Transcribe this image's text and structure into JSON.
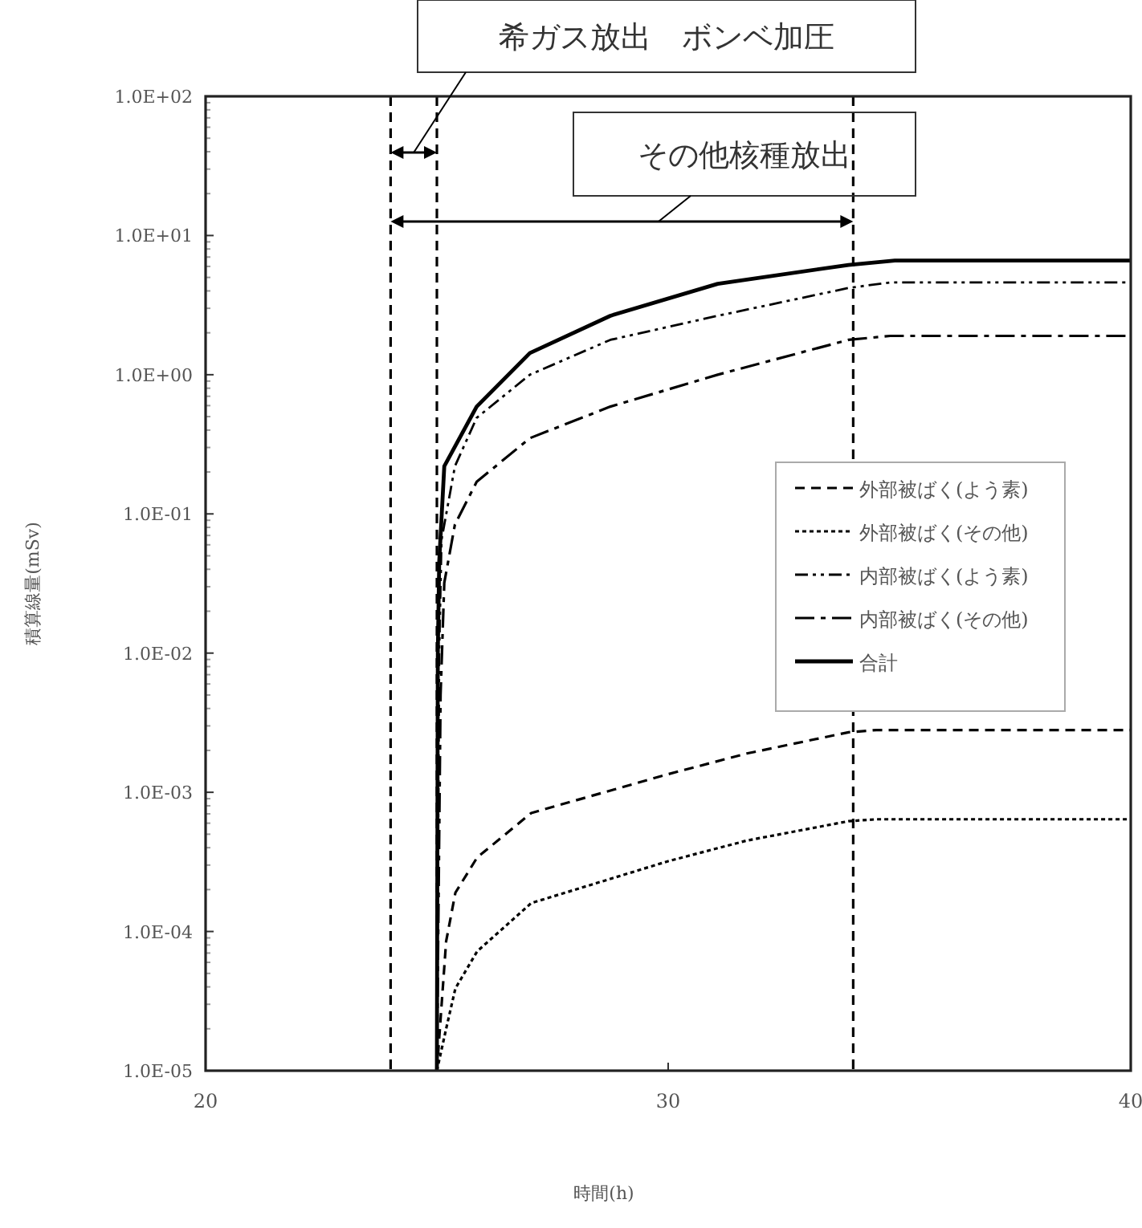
{
  "chart_data": {
    "type": "line",
    "xlabel": "時間(h)",
    "ylabel": "積算線量(mSv)",
    "log": "y",
    "xlim": [
      20,
      40
    ],
    "xticks": [
      20,
      30,
      40
    ],
    "ylim": [
      1e-05,
      100
    ],
    "yticks": [
      {
        "value": 1e-05,
        "label": "1.0E-05"
      },
      {
        "value": 0.0001,
        "label": "1.0E-04"
      },
      {
        "value": 0.001,
        "label": "1.0E-03"
      },
      {
        "value": 0.01,
        "label": "1.0E-02"
      },
      {
        "value": 0.1,
        "label": "1.0E-01"
      },
      {
        "value": 1,
        "label": "1.0E+00"
      },
      {
        "value": 10,
        "label": "1.0E+01"
      },
      {
        "value": 100,
        "label": "1.0E+02"
      }
    ],
    "grid": false,
    "legend": "right",
    "marker": "none",
    "series": [
      {
        "name": "外部被ばく(よう素)",
        "color": "#000000",
        "line_style": "dashed",
        "x": [
          25,
          25.2,
          25.4,
          25.87,
          27.04,
          30,
          31.7,
          33.9,
          34.5,
          40
        ],
        "values": [
          1e-05,
          8.5e-05,
          0.00019,
          0.00034,
          0.00071,
          0.00135,
          0.0019,
          0.0027,
          0.0028,
          0.0028
        ]
      },
      {
        "name": "外部被ばく(その他)",
        "color": "#000000",
        "line_style": "dotted",
        "x": [
          25,
          25.2,
          25.4,
          25.87,
          27.04,
          30,
          31.7,
          33.9,
          34.5,
          40
        ],
        "values": [
          1e-05,
          2e-05,
          3.9e-05,
          7.2e-05,
          0.00016,
          0.00032,
          0.00045,
          0.00062,
          0.00064,
          0.00064
        ]
      },
      {
        "name": "内部被ばく(よう素)",
        "color": "#000000",
        "line_style": "dashdotdot",
        "x": [
          25,
          25.05,
          25.1,
          25.39,
          25.86,
          27.01,
          28.75,
          31.07,
          33.9,
          34.8,
          40
        ],
        "values": [
          1e-05,
          0.01,
          0.065,
          0.22,
          0.49,
          1.0,
          1.78,
          2.65,
          4.2,
          4.6,
          4.6
        ]
      },
      {
        "name": "内部被ばく(その他)",
        "color": "#000000",
        "line_style": "dashdot",
        "x": [
          25,
          25.08,
          25.16,
          25.39,
          25.86,
          27.01,
          28.75,
          31.07,
          33.9,
          34.8,
          40
        ],
        "values": [
          1e-05,
          0.005,
          0.032,
          0.084,
          0.17,
          0.35,
          0.59,
          1.0,
          1.78,
          1.9,
          1.9
        ]
      },
      {
        "name": "合計",
        "color": "#000000",
        "line_style": "solid",
        "x": [
          25,
          25.02,
          25.05,
          25.16,
          25.86,
          27.01,
          28.75,
          31.07,
          33.9,
          34.9,
          40
        ],
        "values": [
          1e-05,
          0.01,
          0.045,
          0.22,
          0.59,
          1.43,
          2.65,
          4.5,
          6.15,
          6.6,
          6.6
        ]
      }
    ],
    "ref_lines": [
      {
        "axis": "x",
        "value": 24,
        "line_style": "dashed"
      },
      {
        "axis": "x",
        "value": 25,
        "line_style": "dashed"
      },
      {
        "axis": "x",
        "value": 34,
        "line_style": "dashed"
      }
    ],
    "annotations": [
      "希ガス放出　ボンベ加圧",
      "その他核種放出"
    ]
  }
}
